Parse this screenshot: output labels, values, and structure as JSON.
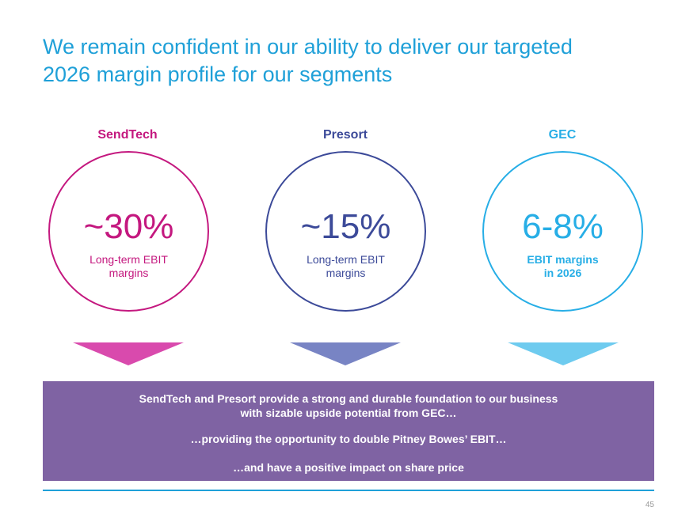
{
  "slide": {
    "title_line1": "We remain confident in our ability to deliver our targeted",
    "title_line2": "2026 margin profile for our segments",
    "page_number": "45"
  },
  "segments": [
    {
      "name": "SendTech",
      "value": "~30%",
      "desc_line1": "Long-term EBIT",
      "desc_line2": "margins",
      "color": "#c4187f",
      "arrow_color": "#d94aad"
    },
    {
      "name": "Presort",
      "value": "~15%",
      "desc_line1": "Long-term EBIT",
      "desc_line2": "margins",
      "color": "#3c4a99",
      "arrow_color": "#7884c4"
    },
    {
      "name": "GEC",
      "value": "6-8%",
      "desc_line1": "EBIT margins",
      "desc_line2": "in 2026",
      "color": "#27aee6",
      "arrow_color": "#6ecbef"
    }
  ],
  "conclusion": {
    "line1": "SendTech and Presort provide a strong and durable foundation to our business",
    "line2": "with sizable upside potential from GEC…",
    "line3": "…providing the opportunity to double Pitney Bowes’ EBIT…",
    "line4": "…and have a positive impact on share price",
    "background_color": "#7f63a3"
  }
}
